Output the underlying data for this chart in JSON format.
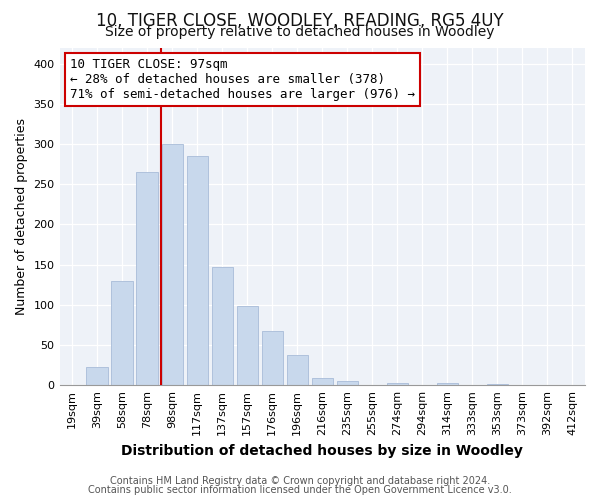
{
  "title": "10, TIGER CLOSE, WOODLEY, READING, RG5 4UY",
  "subtitle": "Size of property relative to detached houses in Woodley",
  "xlabel": "Distribution of detached houses by size in Woodley",
  "ylabel": "Number of detached properties",
  "bar_labels": [
    "19sqm",
    "39sqm",
    "58sqm",
    "78sqm",
    "98sqm",
    "117sqm",
    "137sqm",
    "157sqm",
    "176sqm",
    "196sqm",
    "216sqm",
    "235sqm",
    "255sqm",
    "274sqm",
    "294sqm",
    "314sqm",
    "333sqm",
    "353sqm",
    "373sqm",
    "392sqm",
    "412sqm"
  ],
  "bar_values": [
    0,
    22,
    130,
    265,
    300,
    285,
    147,
    98,
    68,
    37,
    9,
    5,
    0,
    3,
    0,
    3,
    0,
    2,
    0,
    0,
    0
  ],
  "bar_color": "#c8d8ec",
  "bar_edge_color": "#a8bcd8",
  "ylim": [
    0,
    420
  ],
  "yticks": [
    0,
    50,
    100,
    150,
    200,
    250,
    300,
    350,
    400
  ],
  "vline_color": "#cc0000",
  "annotation_title": "10 TIGER CLOSE: 97sqm",
  "annotation_line1": "← 28% of detached houses are smaller (378)",
  "annotation_line2": "71% of semi-detached houses are larger (976) →",
  "annotation_box_color": "#ffffff",
  "annotation_box_edge": "#cc0000",
  "footer1": "Contains HM Land Registry data © Crown copyright and database right 2024.",
  "footer2": "Contains public sector information licensed under the Open Government Licence v3.0.",
  "background_color": "#ffffff",
  "plot_background_color": "#eef2f8",
  "grid_color": "#ffffff",
  "title_fontsize": 12,
  "subtitle_fontsize": 10,
  "xlabel_fontsize": 10,
  "ylabel_fontsize": 9,
  "tick_fontsize": 8,
  "annotation_fontsize": 9,
  "footer_fontsize": 7
}
